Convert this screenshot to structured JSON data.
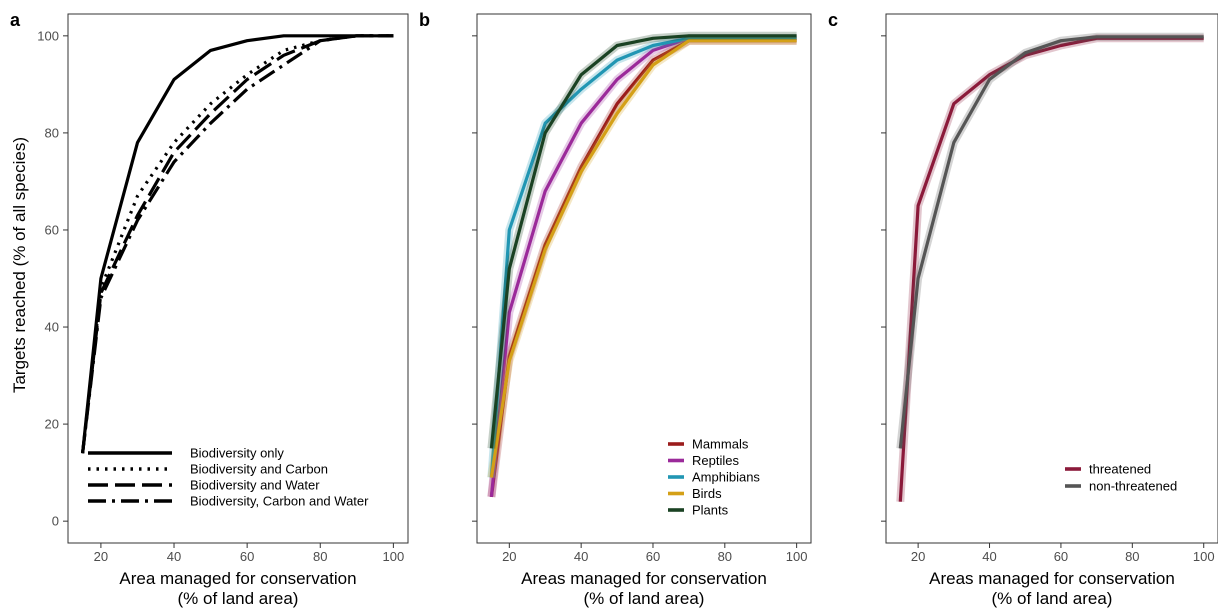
{
  "figure": {
    "y_axis_label": "Targets reached (% of all species)"
  },
  "chart_data": [
    {
      "type": "line",
      "panel_label": "a",
      "xlabel_line1": "Area managed for conservation",
      "xlabel_line2": "(% of land area)",
      "ylabel": "Targets reached (% of all species)",
      "xlim": [
        15,
        100
      ],
      "ylim": [
        0,
        100
      ],
      "xticks": [
        20,
        40,
        60,
        80,
        100
      ],
      "yticks": [
        0,
        20,
        40,
        60,
        80,
        100
      ],
      "grid": false,
      "legend_position": "bottom-right",
      "x": [
        15,
        20,
        30,
        40,
        50,
        60,
        70,
        80,
        90,
        100
      ],
      "series": [
        {
          "name": "Biodiversity only",
          "color": "#000000",
          "dash": "solid",
          "values": [
            14,
            50,
            78,
            91,
            97,
            99,
            100,
            100,
            100,
            100
          ]
        },
        {
          "name": "Biodiversity and Carbon",
          "color": "#000000",
          "dash": "dotted",
          "values": [
            14,
            48,
            67,
            78,
            86,
            92,
            97,
            99,
            100,
            100
          ]
        },
        {
          "name": "Biodiversity and Water",
          "color": "#000000",
          "dash": "longdash",
          "values": [
            14,
            47,
            63,
            76,
            84,
            91,
            96,
            99,
            100,
            100
          ]
        },
        {
          "name": "Biodiversity, Carbon and Water",
          "color": "#000000",
          "dash": "dotdash",
          "values": [
            14,
            46,
            62,
            74,
            82,
            89,
            94,
            99,
            100,
            100
          ]
        }
      ]
    },
    {
      "type": "line",
      "panel_label": "b",
      "xlabel_line1": "Areas managed for conservation",
      "xlabel_line2": "(% of land area)",
      "xlim": [
        15,
        100
      ],
      "ylim": [
        0,
        100
      ],
      "xticks": [
        20,
        40,
        60,
        80,
        100
      ],
      "yticks": [
        0,
        20,
        40,
        60,
        80,
        100
      ],
      "grid": false,
      "legend_position": "bottom-right",
      "x": [
        15,
        20,
        30,
        40,
        50,
        60,
        70,
        80,
        90,
        100
      ],
      "series": [
        {
          "name": "Mammals",
          "color": "#9b1c1c",
          "dash": "solid",
          "values": [
            5,
            34,
            57,
            73,
            86,
            95,
            99,
            99,
            99,
            99
          ]
        },
        {
          "name": "Reptiles",
          "color": "#9b2a9a",
          "dash": "solid",
          "values": [
            5,
            43,
            68,
            82,
            91,
            97,
            99.5,
            99.5,
            99.5,
            99.5
          ]
        },
        {
          "name": "Amphibians",
          "color": "#2196b3",
          "dash": "solid",
          "values": [
            9,
            60,
            82,
            89,
            95,
            98,
            99.5,
            99.5,
            99.5,
            99.5
          ]
        },
        {
          "name": "Birds",
          "color": "#d4a017",
          "dash": "solid",
          "values": [
            9,
            33,
            56,
            72,
            84,
            94,
            99,
            99,
            99,
            99
          ]
        },
        {
          "name": "Plants",
          "color": "#1a4223",
          "dash": "solid",
          "values": [
            15,
            52,
            80,
            92,
            98,
            99.5,
            100,
            100,
            100,
            100
          ]
        }
      ]
    },
    {
      "type": "line",
      "panel_label": "c",
      "xlabel_line1": "Areas managed for conservation",
      "xlabel_line2": "(% of land area)",
      "xlim": [
        15,
        100
      ],
      "ylim": [
        0,
        100
      ],
      "xticks": [
        20,
        40,
        60,
        80,
        100
      ],
      "yticks": [
        0,
        20,
        40,
        60,
        80,
        100
      ],
      "grid": false,
      "legend_position": "bottom-right",
      "x": [
        15,
        20,
        30,
        40,
        50,
        60,
        70,
        80,
        90,
        100
      ],
      "series": [
        {
          "name": "threatened",
          "color": "#8b1a3a",
          "dash": "solid",
          "values": [
            4,
            65,
            86,
            92,
            96,
            98,
            99.5,
            99.5,
            99.5,
            99.5
          ]
        },
        {
          "name": "non-threatened",
          "color": "#555555",
          "dash": "solid",
          "values": [
            15,
            50,
            78,
            91,
            96.5,
            99,
            99.8,
            99.8,
            99.8,
            99.8
          ]
        }
      ]
    }
  ]
}
